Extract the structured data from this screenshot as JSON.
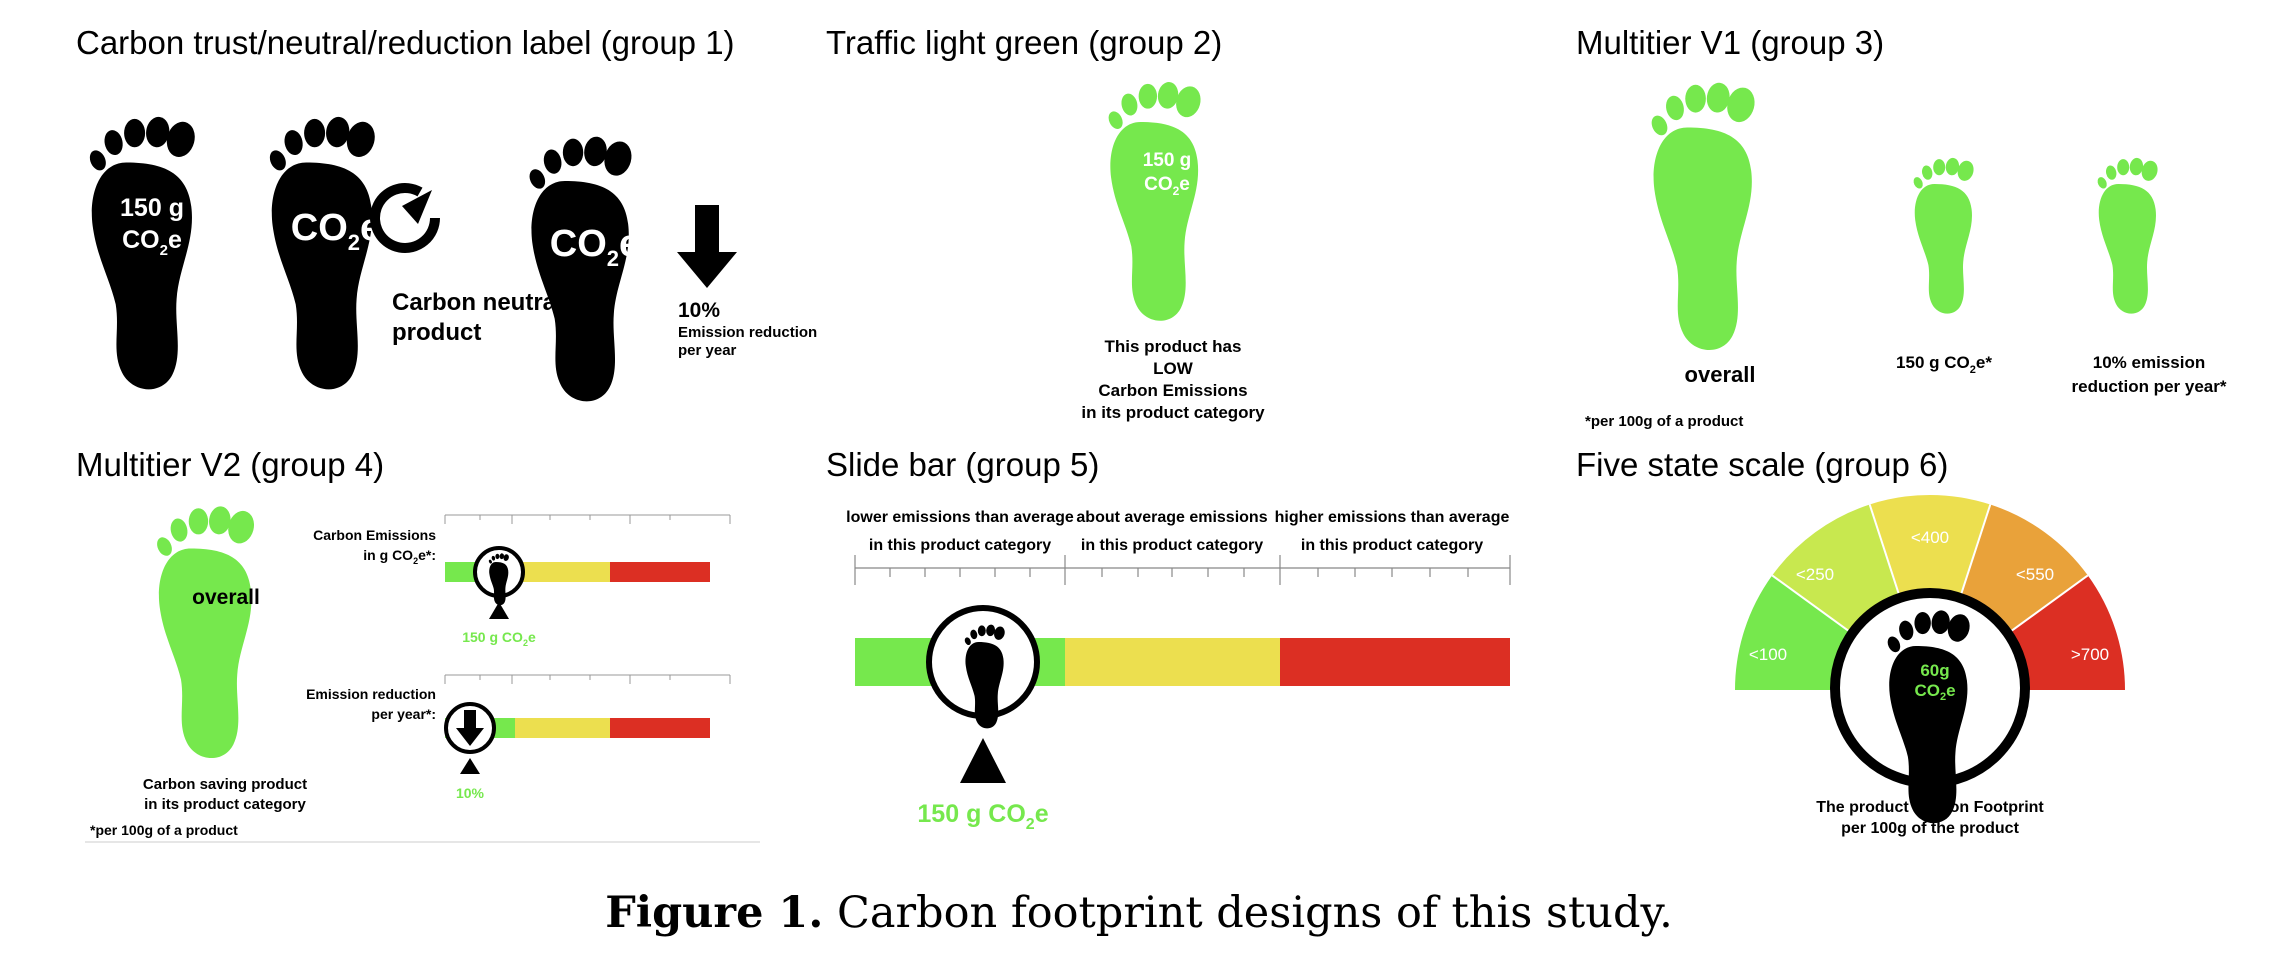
{
  "colors": {
    "green": "#76e84d",
    "yellow": "#ecdf4f",
    "red": "#dc2f23",
    "yellow_green": "#c8e84f",
    "amber": "#f0c63a",
    "orange": "#e9a23a",
    "black": "#000000"
  },
  "panels": [
    {
      "title": "Carbon trust/neutral/reduction label (group 1)",
      "labels": {
        "fp1_line1": "150 g",
        "fp1_line2_main": "CO",
        "fp1_line2_sub": "2",
        "fp1_line2_end": "e",
        "fp2_main": "CO",
        "fp2_sub": "2",
        "fp2_end": "e",
        "neutral_line1": "Carbon neutral",
        "neutral_line2": "product",
        "fp3_main": "CO",
        "fp3_sub": "2",
        "fp3_end": "e",
        "reduction_pct": "10%",
        "reduction_line1": "Emission reduction",
        "reduction_line2": "per year"
      }
    },
    {
      "title": "Traffic light green (group 2)",
      "labels": {
        "fp_line1": "150 g",
        "fp_line2_main": "CO",
        "fp_line2_sub": "2",
        "fp_line2_end": "e",
        "text_line1": "This product has",
        "text_line2": "LOW",
        "text_line3": "Carbon Emissions",
        "text_line4": "in its product category"
      }
    },
    {
      "title": "Multitier V1 (group 3)",
      "labels": {
        "overall": "overall",
        "mid_main": "150 g CO",
        "mid_sub": "2",
        "mid_end": "e*",
        "right_line1": "10% emission",
        "right_line2": "reduction per year*",
        "footnote": "*per 100g of a product"
      }
    },
    {
      "title": "Multitier V2 (group 4)",
      "labels": {
        "overall": "overall",
        "emissions_line1": "Carbon Emissions",
        "emissions_line2_main": "in g CO",
        "emissions_line2_sub": "2",
        "emissions_line2_end": "e*:",
        "emissions_value_main": "150 g CO",
        "emissions_value_sub": "2",
        "emissions_value_end": "e",
        "reduction_line1": "Emission reduction",
        "reduction_line2": "per year*:",
        "reduction_value": "10%",
        "saving_line1": "Carbon saving product",
        "saving_line2": "in its product category",
        "footnote": "*per 100g of a product"
      }
    },
    {
      "title": "Slide bar (group 5)",
      "labels": {
        "zone1_line1": "lower emissions than average",
        "zone1_line2": "in this product category",
        "zone2_line1": "about average emissions",
        "zone2_line2": "in this product category",
        "zone3_line1": "higher emissions than average",
        "zone3_line2": "in this product category",
        "value_main": "150 g CO",
        "value_sub": "2",
        "value_end": "e"
      }
    },
    {
      "title": "Five state scale (group 6)",
      "labels": {
        "seg1": "<100",
        "seg2": "<250",
        "seg3": "<400",
        "seg4": "<550",
        "seg5": ">700",
        "center_line1": "60g",
        "center_line2_main": "CO",
        "center_line2_sub": "2",
        "center_line2_end": "e",
        "text_line1": "The product Carbon Footprint",
        "text_line2": "per 100g of the product"
      }
    }
  ],
  "caption": {
    "label": "Figure 1.",
    "text": " Carbon footprint designs of this study."
  }
}
